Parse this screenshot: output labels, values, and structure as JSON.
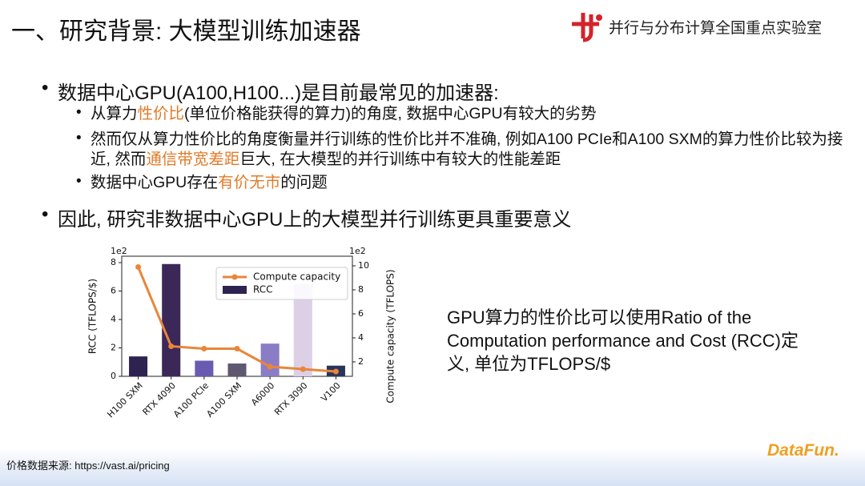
{
  "header": {
    "title": "一、研究背景: 大模型训练加速器",
    "lab": "并行与分布计算全国重点实验室"
  },
  "bullets": [
    {
      "text": "数据中心GPU(A100,H100...)是目前最常见的加速器:",
      "children": [
        {
          "segments": [
            "从算力",
            {
              "text": "性价比",
              "color": "#e07b28"
            },
            "(单位价格能获得的算力)的角度, 数据中心GPU有较大的劣势"
          ]
        },
        {
          "segments": [
            "然而仅从算力性价比的角度衡量并行训练的性价比并不准确, 例如A100 PCIe和A100 SXM的算力性价比较为接近, 然而",
            {
              "text": "通信带宽差距",
              "color": "#e07b28"
            },
            "巨大, 在大模型的并行训练中有较大的性能差距"
          ]
        },
        {
          "segments": [
            "数据中心GPU存在",
            {
              "text": "有价无市",
              "color": "#e07b28"
            },
            "的问题"
          ]
        }
      ]
    },
    {
      "text": "因此, 研究非数据中心GPU上的大模型并行训练更具重要意义"
    }
  ],
  "note": "GPU算力的性价比可以使用Ratio of the Computation performance and Cost (RCC)定义, 单位为TFLOPS/$",
  "footer": {
    "source": "价格数据来源: https://vast.ai/pricing",
    "brand": "DataFun."
  },
  "chart_data": {
    "type": "bar",
    "categories": [
      "H100 SXM",
      "RTX 4090",
      "A100 PCIe",
      "A100 SXM",
      "A6000",
      "RTX 3090",
      "V100"
    ],
    "series": [
      {
        "name": "Compute capacity",
        "type": "line",
        "axis": "y2",
        "color": "#e8863a",
        "values": [
          9.9,
          3.3,
          3.1,
          3.1,
          1.6,
          1.4,
          1.2
        ]
      },
      {
        "name": "RCC",
        "type": "bar",
        "color": "#2e2350",
        "colors": [
          "#2e2350",
          "#3b2858",
          "#6a5bb0",
          "#5e5970",
          "#8b7cc6",
          "#dccfe6",
          "#2a3658"
        ],
        "values": [
          1.4,
          7.9,
          1.1,
          0.9,
          2.3,
          6.5,
          0.75
        ]
      }
    ],
    "ylabel": "RCC (TFLOPS/$)",
    "y2label": "Compute capacity (TFLOPS)",
    "y_offset_label": "1e2",
    "y2_offset_label": "1e2",
    "ylim": [
      0,
      8.45
    ],
    "yticks": [
      0,
      2,
      4,
      6,
      8
    ],
    "y2lim": [
      0.8,
      10.8
    ],
    "y2ticks": [
      2,
      4,
      6,
      8,
      10
    ],
    "legend": "upper right"
  }
}
